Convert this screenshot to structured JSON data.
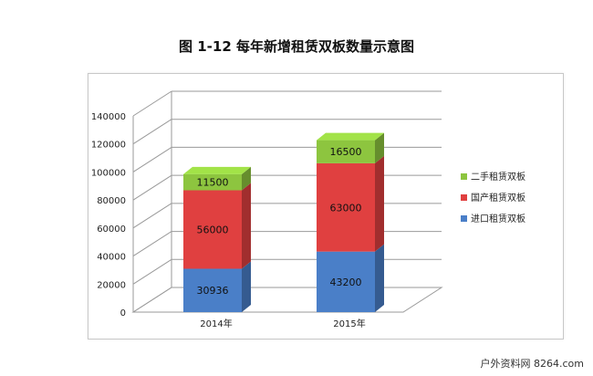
{
  "title": "图 1-12 每年新增租赁双板数量示意图",
  "watermark": "户外资料网 8264.com",
  "colors": {
    "series_green": "#8dc53f",
    "series_red": "#e04040",
    "series_blue": "#4a7fc8"
  },
  "chart_data": {
    "type": "bar",
    "stacked": true,
    "three_d": true,
    "title": "图 1-12 每年新增租赁双板数量示意图",
    "categories": [
      "2014年",
      "2015年"
    ],
    "series": [
      {
        "name": "进口租赁双板",
        "values": [
          30936,
          43200
        ],
        "labels": [
          "30936",
          "43200"
        ]
      },
      {
        "name": "国产租赁双板",
        "values": [
          56000,
          63000
        ],
        "labels": [
          "56000",
          "63000"
        ]
      },
      {
        "name": "二手租赁双板",
        "values": [
          11500,
          16500
        ],
        "labels": [
          "11500",
          "16500"
        ]
      }
    ],
    "ylim": [
      0,
      140000
    ],
    "yticks": [
      "0",
      "20000",
      "40000",
      "60000",
      "80000",
      "100000",
      "120000",
      "140000"
    ],
    "grid": true,
    "legend_position": "right"
  }
}
